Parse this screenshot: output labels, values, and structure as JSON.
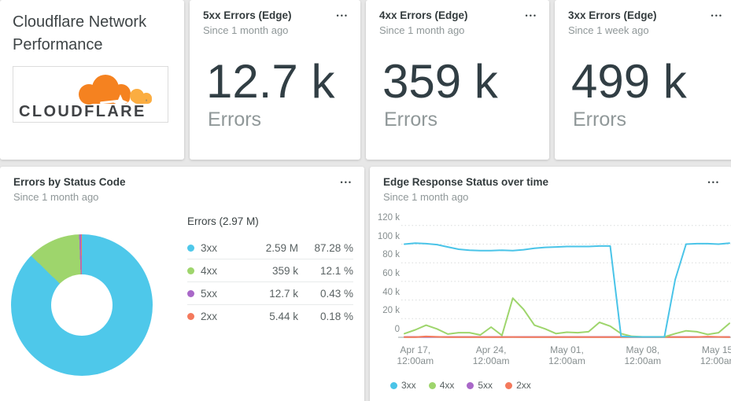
{
  "brand": {
    "title": "Cloudflare Network Performance",
    "logo_text": "CLOUDFLARE",
    "logo_mark": "'",
    "logo_orange": "#f58220",
    "logo_light_orange": "#fbad41"
  },
  "menu_icon": "•••",
  "kpi_cards": [
    {
      "title": "5xx Errors (Edge)",
      "subtitle": "Since 1 month ago",
      "value": "12.7 k",
      "label": "Errors"
    },
    {
      "title": "4xx Errors (Edge)",
      "subtitle": "Since 1 month ago",
      "value": "359 k",
      "label": "Errors"
    },
    {
      "title": "3xx Errors (Edge)",
      "subtitle": "Since 1 week ago",
      "value": "499 k",
      "label": "Errors"
    }
  ],
  "chart_data": [
    {
      "type": "pie",
      "title": "Errors by Status Code",
      "subtitle": "Since 1 month ago",
      "legend_header": "Errors (2.97 M)",
      "donut": true,
      "slices": [
        {
          "label": "3xx",
          "value": "2.59 M",
          "pct": 87.28,
          "pct_display": "87.28 %",
          "color": "#4ec8ea"
        },
        {
          "label": "4xx",
          "value": "359 k",
          "pct": 12.1,
          "pct_display": "12.1 %",
          "color": "#9ed56c"
        },
        {
          "label": "5xx",
          "value": "12.7 k",
          "pct": 0.43,
          "pct_display": "0.43 %",
          "color": "#a968c8"
        },
        {
          "label": "2xx",
          "value": "5.44 k",
          "pct": 0.18,
          "pct_display": "0.18 %",
          "color": "#f4795c"
        }
      ]
    },
    {
      "type": "line",
      "title": "Edge Response Status over time",
      "subtitle": "Since 1 month ago",
      "unit": "k",
      "ylim": [
        0,
        120000
      ],
      "grid": "dotted",
      "legend_position": "bottom",
      "x_start": "Apr 16",
      "x_end": "May 16",
      "y_ticks": [
        {
          "label": "120 k",
          "value": 120
        },
        {
          "label": "100 k",
          "value": 100
        },
        {
          "label": "80 k",
          "value": 80
        },
        {
          "label": "60 k",
          "value": 60
        },
        {
          "label": "40 k",
          "value": 40
        },
        {
          "label": "20 k",
          "value": 20
        },
        {
          "label": "0",
          "value": 0
        }
      ],
      "x_ticks": [
        {
          "line1": "Apr 17,",
          "line2": "12:00am",
          "day": 1
        },
        {
          "line1": "Apr 24,",
          "line2": "12:00am",
          "day": 8
        },
        {
          "line1": "May 01,",
          "line2": "12:00am",
          "day": 15
        },
        {
          "line1": "May 08,",
          "line2": "12:00am",
          "day": 22
        },
        {
          "line1": "May 15,",
          "line2": "12:00am",
          "day": 29
        }
      ],
      "series": [
        {
          "name": "3xx",
          "color": "#4ac4e8",
          "values_k": [
            100,
            101,
            100.5,
            99.5,
            97,
            94.5,
            93.5,
            93,
            93,
            93.5,
            93,
            94,
            95.5,
            96.5,
            97,
            97.5,
            97.5,
            97.5,
            98,
            98,
            1,
            0.5,
            0.4,
            0.4,
            0.5,
            62,
            100,
            100.5,
            100.5,
            100,
            101
          ]
        },
        {
          "name": "4xx",
          "color": "#9ed56c",
          "values_k": [
            4,
            8,
            13,
            9,
            3.5,
            5,
            5,
            2.5,
            11,
            2,
            42,
            30,
            13,
            9,
            4,
            5.5,
            5,
            6,
            16,
            12,
            4,
            1,
            0.5,
            0.5,
            0.5,
            4,
            7,
            6,
            3,
            5,
            15
          ]
        },
        {
          "name": "5xx",
          "color": "#a968c8",
          "values_k": [
            0.4,
            0.4,
            0.4,
            0.4,
            0.4,
            0.4,
            0.4,
            0.4,
            0.4,
            0.4,
            0.4,
            0.4,
            0.4,
            0.4,
            0.4,
            0.4,
            0.4,
            0.4,
            0.4,
            0.4,
            0.4,
            0.4,
            0.4,
            0.4,
            0.4,
            0.4,
            0.4,
            0.4,
            0.4,
            0.4,
            0.4
          ]
        },
        {
          "name": "2xx",
          "color": "#f4795c",
          "values_k": [
            0.2,
            0.25,
            0.9,
            0.5,
            0.25,
            0.2,
            0.2,
            0.2,
            0.25,
            0.2,
            0.3,
            0.25,
            0.2,
            0.2,
            0.2,
            0.2,
            0.2,
            0.2,
            0.25,
            0.2,
            0.2,
            0.15,
            0.15,
            0.15,
            0.15,
            0.2,
            0.25,
            0.3,
            0.8,
            0.4,
            0.25
          ]
        }
      ]
    }
  ]
}
